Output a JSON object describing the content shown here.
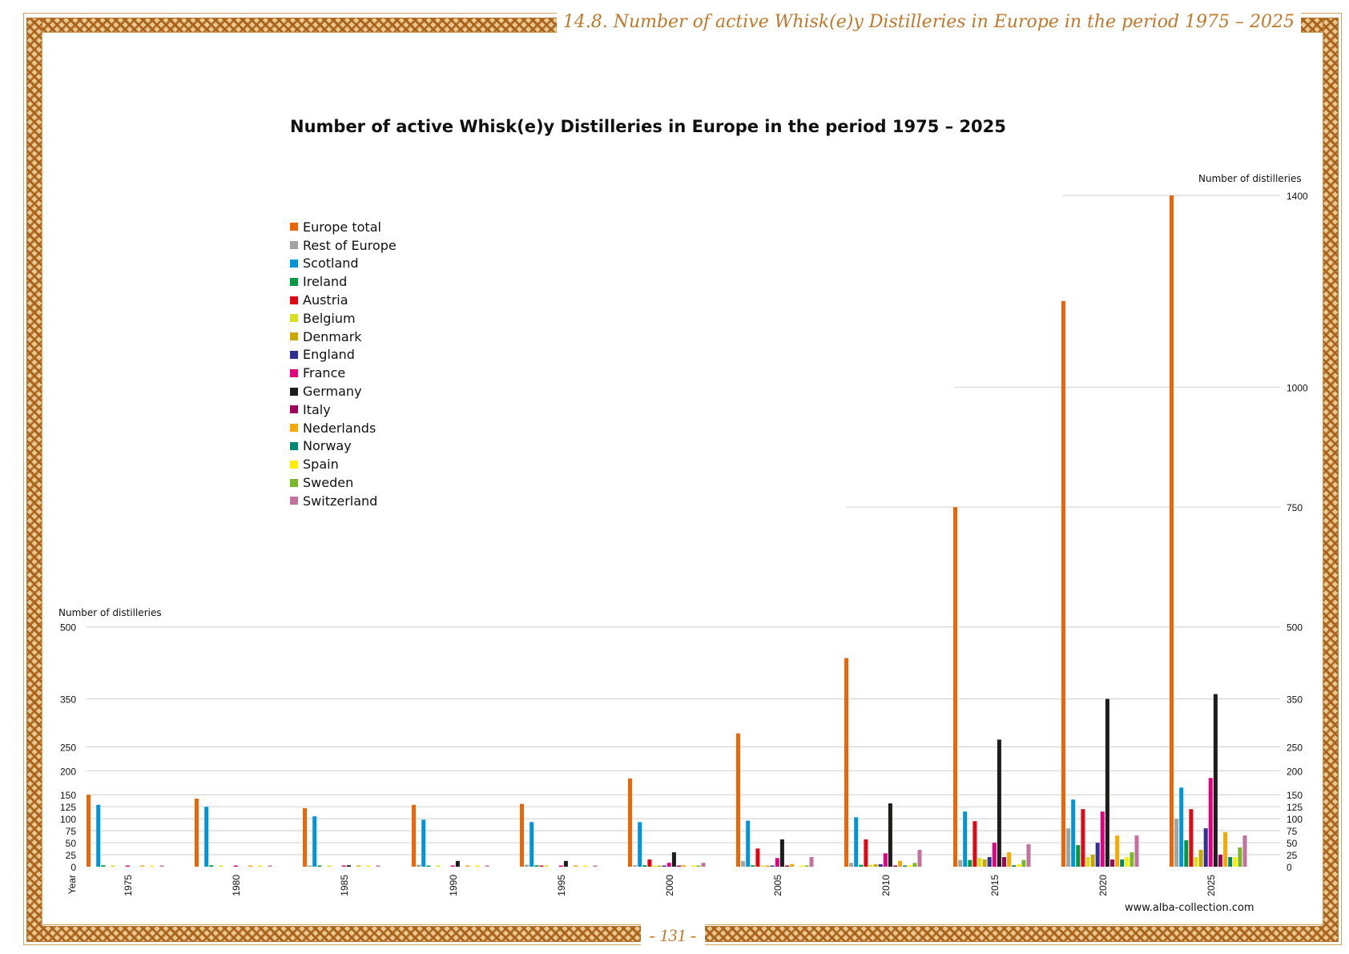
{
  "header": {
    "title": "14.8. Number of active Whisk(e)y Distilleries in Europe in the period 1975 – 2025",
    "page_number": "- 131 -"
  },
  "footer": {
    "url": "www.alba-collection.com"
  },
  "chart_data": {
    "type": "bar",
    "title": "Number of active Whisk(e)y Distilleries in Europe in the period 1975 – 2025",
    "ylabel_left": "Number of distilleries",
    "ylabel_right": "Number of distilleries",
    "xlabel": "Year",
    "ylim": [
      0,
      1400
    ],
    "y_ticks_left": [
      0,
      25,
      50,
      75,
      100,
      125,
      150,
      200,
      250,
      350,
      500
    ],
    "y_ticks_right": [
      0,
      25,
      50,
      75,
      100,
      125,
      150,
      200,
      250,
      350,
      500,
      750,
      1000,
      1400
    ],
    "grid": true,
    "legend_position": "top-left",
    "categories": [
      "1975",
      "1980",
      "1985",
      "1990",
      "1995",
      "2000",
      "2005",
      "2010",
      "2015",
      "2020",
      "2025"
    ],
    "series": [
      {
        "name": "Europe total",
        "color": "#ec6608",
        "values": [
          150,
          142,
          122,
          129,
          131,
          184,
          278,
          435,
          750,
          1180,
          1400
        ]
      },
      {
        "name": "Rest of Europe",
        "color": "#a3a3a3",
        "values": [
          0,
          0,
          2,
          4,
          4,
          3,
          12,
          8,
          14,
          80,
          100
        ]
      },
      {
        "name": "Scotland",
        "color": "#0095d9",
        "values": [
          129,
          125,
          105,
          98,
          93,
          93,
          96,
          103,
          115,
          140,
          165
        ]
      },
      {
        "name": "Ireland",
        "color": "#009a44",
        "values": [
          3,
          3,
          1,
          2,
          3,
          3,
          3,
          4,
          14,
          45,
          55
        ]
      },
      {
        "name": "Austria",
        "color": "#e30613",
        "values": [
          0,
          0,
          0,
          0,
          2,
          15,
          38,
          57,
          95,
          120,
          120
        ]
      },
      {
        "name": "Belgium",
        "color": "#d9e021",
        "values": [
          1,
          1,
          1,
          1,
          1,
          1,
          2,
          4,
          18,
          20,
          20
        ]
      },
      {
        "name": "Denmark",
        "color": "#c9a800",
        "values": [
          0,
          0,
          0,
          0,
          0,
          1,
          2,
          5,
          15,
          25,
          35
        ]
      },
      {
        "name": "England",
        "color": "#2e3192",
        "values": [
          0,
          0,
          0,
          0,
          0,
          1,
          1,
          5,
          20,
          50,
          80
        ]
      },
      {
        "name": "France",
        "color": "#e5007e",
        "values": [
          2,
          2,
          1,
          1,
          2,
          8,
          18,
          28,
          50,
          115,
          185
        ]
      },
      {
        "name": "Germany",
        "color": "#1d1d1b",
        "values": [
          0,
          0,
          3,
          12,
          12,
          30,
          57,
          132,
          265,
          350,
          360
        ]
      },
      {
        "name": "Italy",
        "color": "#a1005a",
        "values": [
          0,
          0,
          0,
          0,
          0,
          1,
          1,
          1,
          20,
          15,
          25
        ]
      },
      {
        "name": "Nederlands",
        "color": "#f9a800",
        "values": [
          1,
          1,
          1,
          1,
          2,
          3,
          5,
          12,
          30,
          65,
          72
        ]
      },
      {
        "name": "Norway",
        "color": "#008675",
        "values": [
          0,
          0,
          0,
          0,
          0,
          0,
          0,
          1,
          3,
          15,
          20
        ]
      },
      {
        "name": "Spain",
        "color": "#ffec00",
        "values": [
          1,
          1,
          1,
          1,
          1,
          1,
          2,
          3,
          5,
          20,
          20
        ]
      },
      {
        "name": "Sweden",
        "color": "#7ab929",
        "values": [
          0,
          0,
          0,
          0,
          0,
          1,
          2,
          8,
          14,
          30,
          40
        ]
      },
      {
        "name": "Switzerland",
        "color": "#c5719d",
        "values": [
          1,
          1,
          1,
          1,
          1,
          8,
          20,
          35,
          47,
          65,
          65
        ]
      }
    ]
  }
}
